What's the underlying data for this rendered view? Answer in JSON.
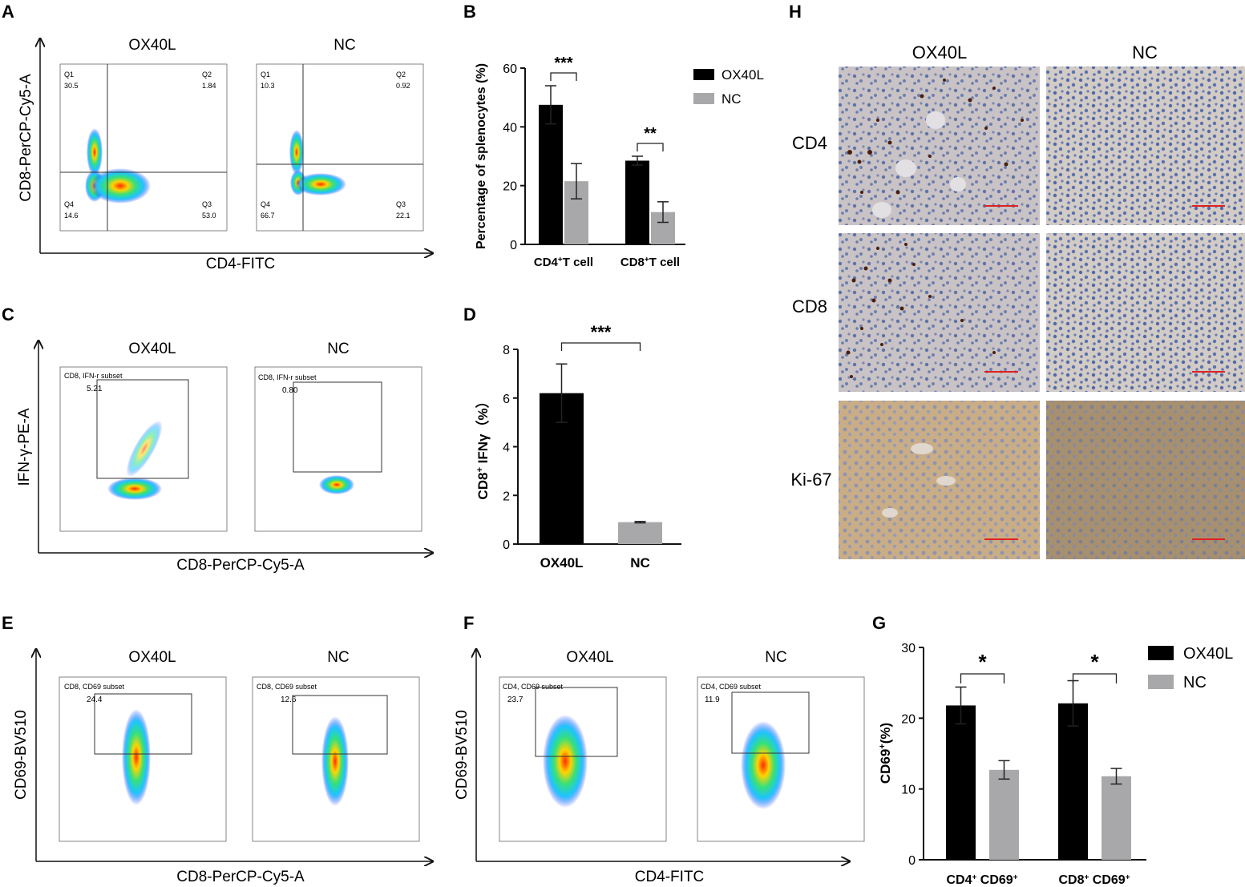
{
  "panels": {
    "A": "A",
    "B": "B",
    "C": "C",
    "D": "D",
    "E": "E",
    "F": "F",
    "G": "G",
    "H": "H"
  },
  "colors": {
    "ox40l": "#000000",
    "nc": "#a8a8ab",
    "axis": "#111111",
    "scalebar": "#e02020"
  },
  "flow": {
    "A": {
      "ylabel": "CD8-PerCP-Cy5-A",
      "xlabel": "CD4-FITC",
      "plots": [
        {
          "title": "OX40L",
          "q1": "Q1",
          "q1v": "30.5",
          "q2": "Q2",
          "q2v": "1.84",
          "q3": "Q3",
          "q3v": "53.0",
          "q4": "Q4",
          "q4v": "14.6"
        },
        {
          "title": "NC",
          "q1": "Q1",
          "q1v": "10.3",
          "q2": "Q2",
          "q2v": "0.92",
          "q3": "Q3",
          "q3v": "22.1",
          "q4": "Q4",
          "q4v": "66.7"
        }
      ]
    },
    "C": {
      "ylabel": "IFN-γ-PE-A",
      "xlabel": "CD8-PerCP-Cy5-A",
      "plots": [
        {
          "title": "OX40L",
          "gate": "CD8, IFN-r subset",
          "value": "5.21"
        },
        {
          "title": "NC",
          "gate": "CD8, IFN-r subset",
          "value": "0.80"
        }
      ]
    },
    "E": {
      "ylabel": "CD69-BV510",
      "xlabel": "CD8-PerCP-Cy5-A",
      "plots": [
        {
          "title": "OX40L",
          "gate": "CD8, CD69 subset",
          "value": "24.4"
        },
        {
          "title": "NC",
          "gate": "CD8, CD69 subset",
          "value": "12.6"
        }
      ]
    },
    "F": {
      "ylabel": "CD69-BV510",
      "xlabel": "CD4-FITC",
      "plots": [
        {
          "title": "OX40L",
          "gate": "CD4, CD69 subset",
          "value": "23.7"
        },
        {
          "title": "NC",
          "gate": "CD4, CD69 subset",
          "value": "11.9"
        }
      ]
    }
  },
  "chart_data": [
    {
      "id": "B",
      "type": "bar",
      "ylabel": "Percentage of splenocytes (%)",
      "ylim": [
        0,
        60
      ],
      "yticks": [
        "0",
        "20",
        "40",
        "60"
      ],
      "groups": [
        {
          "label_main": "CD4",
          "label_sup": "+",
          "label_rest": "T cell",
          "sig": "***"
        },
        {
          "label_main": "CD8",
          "label_sup": "+",
          "label_rest": "T cell",
          "sig": "**"
        }
      ],
      "series": [
        {
          "name": "OX40L",
          "values": [
            47.5,
            28.5
          ],
          "errors": [
            6.5,
            1.5
          ]
        },
        {
          "name": "NC",
          "values": [
            21.5,
            11.0
          ],
          "errors": [
            6.0,
            3.5
          ]
        }
      ],
      "legend": "top-right"
    },
    {
      "id": "D",
      "type": "bar",
      "ylabel_main": "CD8",
      "ylabel_sup": "+",
      "ylabel_rest": " IFNγ（%）",
      "ylim": [
        0,
        8
      ],
      "yticks": [
        "0",
        "2",
        "4",
        "6",
        "8"
      ],
      "categories": [
        "OX40L",
        "NC"
      ],
      "values": [
        6.2,
        0.9
      ],
      "errors": [
        1.2,
        0.03
      ],
      "sig": "***"
    },
    {
      "id": "G",
      "type": "bar",
      "ylabel_main": "CD69",
      "ylabel_sup": "+",
      "ylabel_rest": "(%)",
      "ylim": [
        0,
        30
      ],
      "yticks": [
        "0",
        "10",
        "20",
        "30"
      ],
      "groups": [
        {
          "a": "CD4",
          "b": "CD69",
          "sig": "*"
        },
        {
          "a": "CD8",
          "b": "CD69",
          "sig": "*"
        }
      ],
      "series": [
        {
          "name": "OX40L",
          "values": [
            21.8,
            22.1
          ],
          "errors": [
            2.6,
            3.2
          ]
        },
        {
          "name": "NC",
          "values": [
            12.7,
            11.8
          ],
          "errors": [
            1.3,
            1.1
          ]
        }
      ],
      "legend": "top-right"
    }
  ],
  "ihc": {
    "columns": [
      "OX40L",
      "NC"
    ],
    "rows": [
      "CD4",
      "CD8",
      "Ki-67"
    ]
  }
}
